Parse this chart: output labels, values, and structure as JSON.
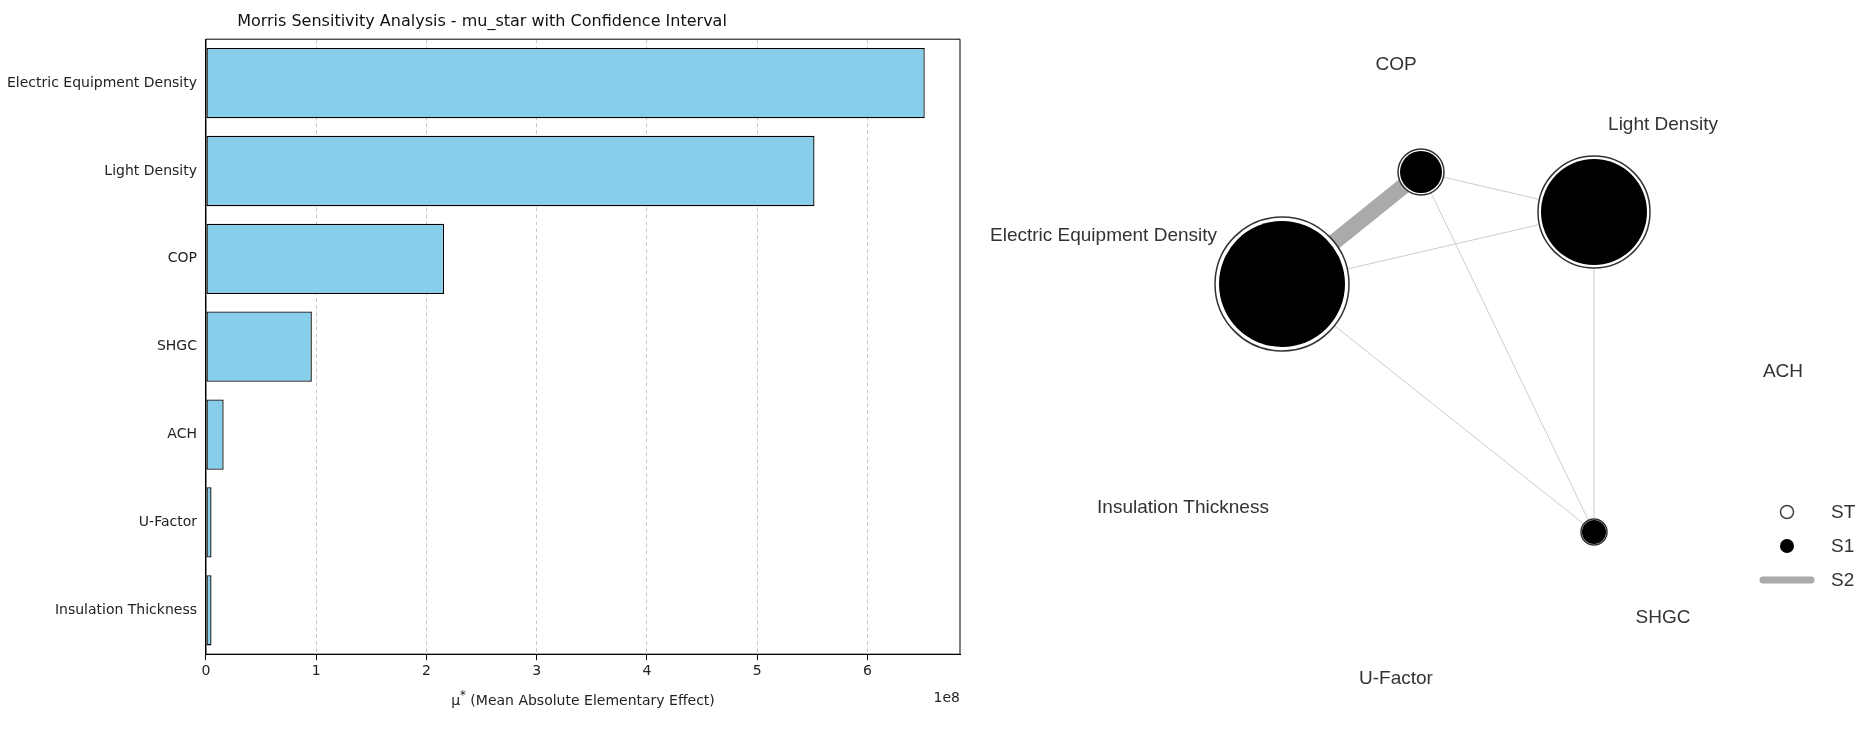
{
  "chart_data": [
    {
      "type": "bar",
      "orientation": "horizontal",
      "title": "Morris Sensitivity Analysis - mu_star with Confidence Interval",
      "xlabel": "μ$^{*}$ (Mean Absolute Elementary Effect)",
      "categories": [
        "Electric Equipment Density",
        "Light Density",
        "COP",
        "SHGC",
        "ACH",
        "U-Factor",
        "Insulation Thickness"
      ],
      "values": [
        6.52,
        5.52,
        2.16,
        0.96,
        0.16,
        0.05,
        0.05
      ],
      "color": "#87ceeb",
      "xlim": [
        0,
        6.84
      ],
      "xticks": [
        0,
        1,
        2,
        3,
        4,
        5,
        6
      ],
      "grid": "x",
      "annotations": [
        "1e8"
      ]
    },
    {
      "type": "other",
      "annotations": [
        "COP",
        "Light Density",
        "Electric Equipment Density",
        "ACH",
        "Insulation Thickness",
        "SHGC",
        "U-Factor",
        "ST",
        "S1",
        "S2"
      ]
    }
  ]
}
